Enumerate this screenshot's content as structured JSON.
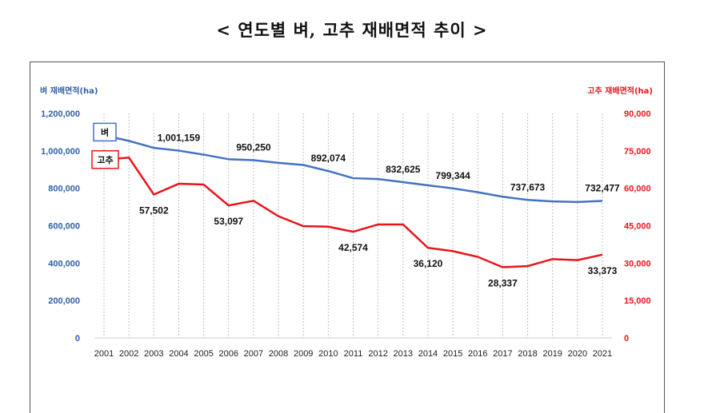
{
  "title": "< 연도별 벼, 고추 재배면적 추이 >",
  "colors": {
    "rice": "#4472C4",
    "pepper": "#E8141B",
    "left_axis": "#2E5FA8",
    "right_axis": "#E8141B",
    "grid": "#BFBFBF"
  },
  "chart_data": {
    "type": "line",
    "title": "< 연도별 벼, 고추 재배면적 추이 >",
    "x": [
      "2001",
      "2002",
      "2003",
      "2004",
      "2005",
      "2006",
      "2007",
      "2008",
      "2009",
      "2010",
      "2011",
      "2012",
      "2013",
      "2014",
      "2015",
      "2016",
      "2017",
      "2018",
      "2019",
      "2020",
      "2021"
    ],
    "y_left": {
      "label": "벼 재배면적(ha)",
      "range": [
        0,
        1200000
      ],
      "ticks": [
        "0",
        "200,000",
        "400,000",
        "600,000",
        "800,000",
        "1,000,000",
        "1,200,000"
      ]
    },
    "y_right": {
      "label": "고추 재배면적(ha)",
      "range": [
        0,
        90000
      ],
      "ticks": [
        "0",
        "15,000",
        "30,000",
        "45,000",
        "60,000",
        "75,000",
        "90,000"
      ]
    },
    "grid": "vertical dashed",
    "series": [
      {
        "name": "벼",
        "axis": "left",
        "values": [
          1083125,
          1053186,
          1016030,
          1001159,
          979717,
          955229,
          950250,
          935766,
          924471,
          892074,
          853823,
          849172,
          832625,
          815506,
          799344,
          778734,
          754713,
          737673,
          729814,
          726432,
          732477
        ],
        "labels": [
          {
            "index": 3,
            "text": "1,001,159"
          },
          {
            "index": 6,
            "text": "950,250"
          },
          {
            "index": 9,
            "text": "892,074"
          },
          {
            "index": 12,
            "text": "832,625"
          },
          {
            "index": 14,
            "text": "799,344"
          },
          {
            "index": 17,
            "text": "737,673"
          },
          {
            "index": 20,
            "text": "732,477"
          }
        ]
      },
      {
        "name": "고추",
        "axis": "right",
        "values": [
          71500,
          72300,
          57502,
          61800,
          61500,
          53097,
          55000,
          48800,
          44800,
          44600,
          42574,
          45500,
          45500,
          36120,
          34800,
          32500,
          28337,
          28800,
          31600,
          31200,
          33373
        ],
        "labels": [
          {
            "index": 2,
            "text": "57,502"
          },
          {
            "index": 5,
            "text": "53,097"
          },
          {
            "index": 10,
            "text": "42,574"
          },
          {
            "index": 13,
            "text": "36,120"
          },
          {
            "index": 16,
            "text": "28,337"
          },
          {
            "index": 20,
            "text": "33,373"
          }
        ]
      }
    ]
  }
}
